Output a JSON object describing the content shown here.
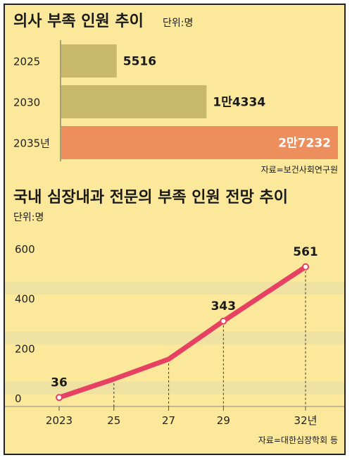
{
  "chart_data": [
    {
      "type": "bar",
      "title": "의사 부족 인원 추이",
      "unit": "단위:명",
      "categories": [
        "2025",
        "2030",
        "2035년"
      ],
      "values": [
        5516,
        14334,
        27232
      ],
      "value_labels": [
        "5516",
        "1만4334",
        "2만7232"
      ],
      "colors": [
        "#c8b96a",
        "#c8b96a",
        "#ec8f5c"
      ],
      "source": "자료=보건사회연구원"
    },
    {
      "type": "line",
      "title": "국내 심장내과 전문의 부족 인원 전망 추이",
      "unit": "단위:명",
      "x": [
        2023,
        2025,
        2027,
        2029,
        2032
      ],
      "x_tick_labels": [
        "2023",
        "25",
        "27",
        "29",
        "32년"
      ],
      "y": [
        36,
        110,
        190,
        343,
        561
      ],
      "point_labels": [
        {
          "index": 0,
          "text": "36"
        },
        {
          "index": 3,
          "text": "343"
        },
        {
          "index": 4,
          "text": "561"
        }
      ],
      "y_ticks": [
        "0",
        "200",
        "400",
        "600"
      ],
      "ylim": [
        0,
        600
      ],
      "color": "#e64162",
      "source": "자료=대한심장학회 등"
    }
  ]
}
